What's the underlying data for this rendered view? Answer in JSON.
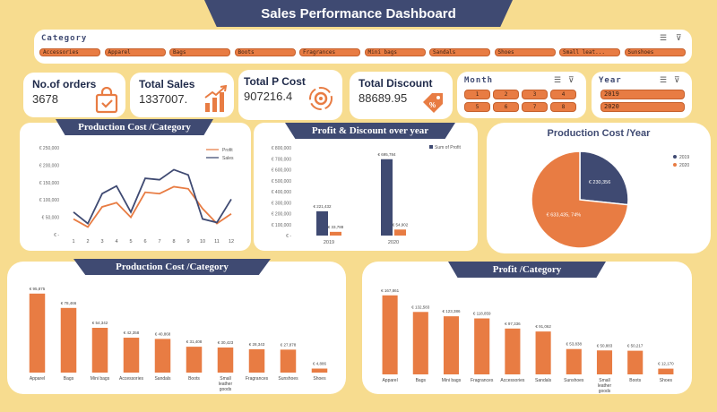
{
  "header": {
    "title": "Sales Performance Dashboard"
  },
  "category_slicer": {
    "title": "Category",
    "items": [
      "Accessories",
      "Apparel",
      "Bags",
      "Boots",
      "Fragrances",
      "Mini bags",
      "Sandals",
      "Shoes",
      "Small leat...",
      "Sunshoes"
    ]
  },
  "kpis": [
    {
      "label": "No.of orders",
      "value": "3678",
      "icon": "shopping-bag-icon"
    },
    {
      "label": "Total Sales",
      "value": "1337007.",
      "icon": "bar-growth-icon"
    },
    {
      "label": "Total P Cost",
      "value": "907216.4",
      "icon": "gear-cycle-icon"
    },
    {
      "label": "Total Discount",
      "value": "88689.95",
      "icon": "discount-tag-icon"
    }
  ],
  "month_slicer": {
    "title": "Month",
    "items": [
      "1",
      "2",
      "3",
      "4",
      "5",
      "6",
      "7",
      "8"
    ]
  },
  "year_slicer": {
    "title": "Year",
    "items": [
      "2019",
      "2020"
    ]
  },
  "colors": {
    "orange": "#e87c43",
    "navy": "#3f4a72",
    "background": "#f7dc8f"
  },
  "chart_data": [
    {
      "type": "line",
      "title": "Production Cost /Category",
      "x": [
        "1",
        "2",
        "3",
        "4",
        "5",
        "6",
        "7",
        "8",
        "9",
        "10",
        "11",
        "12"
      ],
      "y_ticks": [
        "€ -",
        "€ 50,000",
        "€ 100,000",
        "€ 150,000",
        "€ 200,000",
        "€ 250,000"
      ],
      "ylim": [
        0,
        250000
      ],
      "series": [
        {
          "name": "Profit",
          "color": "#e87c43",
          "values": [
            45000,
            22000,
            80000,
            92000,
            50000,
            122000,
            118000,
            138000,
            132000,
            75000,
            32000,
            60000
          ]
        },
        {
          "name": "Sales",
          "color": "#3f4a72",
          "values": [
            65000,
            32000,
            118000,
            140000,
            65000,
            162000,
            158000,
            187000,
            172000,
            45000,
            35000,
            102000
          ]
        }
      ],
      "legend": "top-right"
    },
    {
      "type": "bar",
      "title": "Profit & Discount over year",
      "categories": [
        "2019",
        "2020"
      ],
      "y_ticks": [
        "€ -",
        "€ 100,000",
        "€ 200,000",
        "€ 300,000",
        "€ 400,000",
        "€ 500,000",
        "€ 600,000",
        "€ 700,000",
        "€ 800,000"
      ],
      "ylim": [
        0,
        800000
      ],
      "series": [
        {
          "name": "Sum of Profit",
          "color": "#3f4a72",
          "values": [
            221432,
            695784
          ],
          "labels": [
            "€ 221,432",
            "€ 695,784"
          ]
        },
        {
          "name": "",
          "color": "#e87c43",
          "values": [
            33788,
            54902
          ],
          "labels": [
            "€ 33,788",
            "€ 54,902"
          ]
        }
      ],
      "legend": "top-right"
    },
    {
      "type": "pie",
      "title": "Production Cost /Year",
      "categories": [
        "2019",
        "2020"
      ],
      "values": [
        230356,
        633435
      ],
      "labels": [
        "€ 230,356",
        "€ 633,435, 74%"
      ],
      "colors": [
        "#3f4a72",
        "#e87c43"
      ],
      "legend": "right"
    },
    {
      "type": "bar",
      "title": "Production Cost /Category",
      "categories": [
        "Apparel",
        "Bags",
        "Mini bags",
        "Accessories",
        "Sandals",
        "Boots",
        "Small leather goods",
        "Fragrances",
        "Sunshoes",
        "Shoes"
      ],
      "values": [
        95875,
        78466,
        54342,
        42358,
        40868,
        31408,
        30423,
        28343,
        27878,
        4886
      ],
      "labels": [
        "€ 95,875",
        "€ 78,466",
        "€ 54,342",
        "€ 42,358",
        "€ 40,868",
        "€ 31,408",
        "€ 30,423",
        "€ 28,343",
        "€ 27,878",
        "€ 4,886"
      ],
      "color": "#e87c43"
    },
    {
      "type": "bar",
      "title": "Profit /Category",
      "categories": [
        "Apparel",
        "Bags",
        "Mini bags",
        "Fragrances",
        "Accessories",
        "Sandals",
        "Sunshoes",
        "Small leather goods",
        "Boots",
        "Shoes"
      ],
      "values": [
        167861,
        132583,
        123386,
        118859,
        97336,
        91062,
        53838,
        50883,
        50217,
        12170
      ],
      "labels": [
        "€ 167,861",
        "€ 132,583",
        "€ 123,386",
        "€ 118,859",
        "€ 97,336",
        "€ 91,062",
        "€ 53,838",
        "€ 50,883",
        "€ 50,217",
        "€ 12,170"
      ],
      "color": "#e87c43"
    }
  ]
}
